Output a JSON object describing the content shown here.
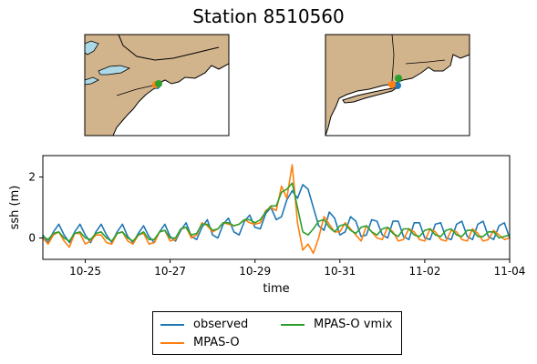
{
  "title": "Station 8510560",
  "chart_data": {
    "type": "line",
    "title": "Station 8510560",
    "xlabel": "time",
    "ylabel": "ssh (m)",
    "xlim": [
      "2022-10-24",
      "2022-11-04"
    ],
    "ylim": [
      -0.7,
      2.7
    ],
    "x_ticks": [
      "10-25",
      "10-27",
      "10-29",
      "10-31",
      "11-02",
      "11-04"
    ],
    "y_ticks": [
      "0",
      "2"
    ],
    "grid": false,
    "legend_position": "below",
    "series": [
      {
        "name": "observed",
        "color": "#1f77b4",
        "x": [
          "2022-10-24 00:00",
          "2022-10-24 03:00",
          "2022-10-24 06:00",
          "2022-10-24 09:00",
          "2022-10-24 12:00",
          "2022-10-24 15:00",
          "2022-10-24 18:00",
          "2022-10-24 21:00",
          "2022-10-25 00:00",
          "2022-10-25 03:00",
          "2022-10-25 06:00",
          "2022-10-25 09:00",
          "2022-10-25 12:00",
          "2022-10-25 15:00",
          "2022-10-25 18:00",
          "2022-10-25 21:00",
          "2022-10-26 00:00",
          "2022-10-26 03:00",
          "2022-10-26 06:00",
          "2022-10-26 09:00",
          "2022-10-26 12:00",
          "2022-10-26 15:00",
          "2022-10-26 18:00",
          "2022-10-26 21:00",
          "2022-10-27 00:00",
          "2022-10-27 03:00",
          "2022-10-27 06:00",
          "2022-10-27 09:00",
          "2022-10-27 12:00",
          "2022-10-27 15:00",
          "2022-10-27 18:00",
          "2022-10-27 21:00",
          "2022-10-28 00:00",
          "2022-10-28 03:00",
          "2022-10-28 06:00",
          "2022-10-28 09:00",
          "2022-10-28 12:00",
          "2022-10-28 15:00",
          "2022-10-28 18:00",
          "2022-10-28 21:00",
          "2022-10-29 00:00",
          "2022-10-29 03:00",
          "2022-10-29 06:00",
          "2022-10-29 09:00",
          "2022-10-29 12:00",
          "2022-10-29 15:00",
          "2022-10-29 18:00",
          "2022-10-29 21:00",
          "2022-10-30 00:00",
          "2022-10-30 03:00",
          "2022-10-30 06:00",
          "2022-10-30 09:00",
          "2022-10-30 12:00",
          "2022-10-30 15:00",
          "2022-10-30 18:00",
          "2022-10-30 21:00",
          "2022-10-31 00:00",
          "2022-10-31 03:00",
          "2022-10-31 06:00",
          "2022-10-31 09:00",
          "2022-10-31 12:00",
          "2022-10-31 15:00",
          "2022-10-31 18:00",
          "2022-10-31 21:00",
          "2022-11-01 00:00",
          "2022-11-01 03:00",
          "2022-11-01 06:00",
          "2022-11-01 09:00",
          "2022-11-01 12:00",
          "2022-11-01 15:00",
          "2022-11-01 18:00",
          "2022-11-01 21:00",
          "2022-11-02 00:00",
          "2022-11-02 03:00",
          "2022-11-02 06:00",
          "2022-11-02 09:00",
          "2022-11-02 12:00",
          "2022-11-02 15:00",
          "2022-11-02 18:00",
          "2022-11-02 21:00",
          "2022-11-03 00:00",
          "2022-11-03 03:00",
          "2022-11-03 06:00",
          "2022-11-03 09:00",
          "2022-11-03 12:00",
          "2022-11-03 15:00",
          "2022-11-03 18:00",
          "2022-11-03 21:00",
          "2022-11-04 00:00"
        ],
        "values": [
          0.1,
          -0.15,
          0.2,
          0.45,
          0.1,
          -0.15,
          0.2,
          0.45,
          0.1,
          -0.15,
          0.2,
          0.45,
          0.1,
          -0.15,
          0.2,
          0.45,
          0.05,
          -0.15,
          0.15,
          0.4,
          0.05,
          -0.15,
          0.2,
          0.45,
          0.05,
          -0.1,
          0.25,
          0.5,
          0.05,
          -0.05,
          0.35,
          0.6,
          0.1,
          0.0,
          0.45,
          0.65,
          0.2,
          0.1,
          0.55,
          0.75,
          0.35,
          0.3,
          0.8,
          1.0,
          0.6,
          0.7,
          1.25,
          1.55,
          1.3,
          1.75,
          1.6,
          1.0,
          0.4,
          0.25,
          0.85,
          0.65,
          0.1,
          0.2,
          0.7,
          0.55,
          0.05,
          0.1,
          0.6,
          0.55,
          0.1,
          0.0,
          0.55,
          0.55,
          0.05,
          -0.05,
          0.5,
          0.5,
          0.0,
          -0.05,
          0.45,
          0.5,
          0.0,
          -0.05,
          0.45,
          0.55,
          0.05,
          -0.05,
          0.45,
          0.55,
          0.05,
          -0.05,
          0.4,
          0.5,
          0.0
        ]
      },
      {
        "name": "MPAS-O",
        "color": "#ff7f0e",
        "x": [
          "2022-10-24 00:00",
          "2022-10-24 03:00",
          "2022-10-24 06:00",
          "2022-10-24 09:00",
          "2022-10-24 12:00",
          "2022-10-24 15:00",
          "2022-10-24 18:00",
          "2022-10-24 21:00",
          "2022-10-25 00:00",
          "2022-10-25 03:00",
          "2022-10-25 06:00",
          "2022-10-25 09:00",
          "2022-10-25 12:00",
          "2022-10-25 15:00",
          "2022-10-25 18:00",
          "2022-10-25 21:00",
          "2022-10-26 00:00",
          "2022-10-26 03:00",
          "2022-10-26 06:00",
          "2022-10-26 09:00",
          "2022-10-26 12:00",
          "2022-10-26 15:00",
          "2022-10-26 18:00",
          "2022-10-26 21:00",
          "2022-10-27 00:00",
          "2022-10-27 03:00",
          "2022-10-27 06:00",
          "2022-10-27 09:00",
          "2022-10-27 12:00",
          "2022-10-27 15:00",
          "2022-10-27 18:00",
          "2022-10-27 21:00",
          "2022-10-28 00:00",
          "2022-10-28 03:00",
          "2022-10-28 06:00",
          "2022-10-28 09:00",
          "2022-10-28 12:00",
          "2022-10-28 15:00",
          "2022-10-28 18:00",
          "2022-10-28 21:00",
          "2022-10-29 00:00",
          "2022-10-29 03:00",
          "2022-10-29 06:00",
          "2022-10-29 09:00",
          "2022-10-29 12:00",
          "2022-10-29 15:00",
          "2022-10-29 18:00",
          "2022-10-29 21:00",
          "2022-10-30 00:00",
          "2022-10-30 03:00",
          "2022-10-30 06:00",
          "2022-10-30 09:00",
          "2022-10-30 12:00",
          "2022-10-30 15:00",
          "2022-10-30 18:00",
          "2022-10-30 21:00",
          "2022-10-31 00:00",
          "2022-10-31 03:00",
          "2022-10-31 06:00",
          "2022-10-31 09:00",
          "2022-10-31 12:00",
          "2022-10-31 15:00",
          "2022-10-31 18:00",
          "2022-10-31 21:00",
          "2022-11-01 00:00",
          "2022-11-01 03:00",
          "2022-11-01 06:00",
          "2022-11-01 09:00",
          "2022-11-01 12:00",
          "2022-11-01 15:00",
          "2022-11-01 18:00",
          "2022-11-01 21:00",
          "2022-11-02 00:00",
          "2022-11-02 03:00",
          "2022-11-02 06:00",
          "2022-11-02 09:00",
          "2022-11-02 12:00",
          "2022-11-02 15:00",
          "2022-11-02 18:00",
          "2022-11-02 21:00",
          "2022-11-03 00:00",
          "2022-11-03 03:00",
          "2022-11-03 06:00",
          "2022-11-03 09:00",
          "2022-11-03 12:00",
          "2022-11-03 15:00",
          "2022-11-03 18:00",
          "2022-11-03 21:00",
          "2022-11-04 00:00"
        ],
        "values": [
          0.0,
          -0.2,
          0.1,
          0.2,
          -0.1,
          -0.3,
          0.15,
          0.15,
          -0.2,
          -0.1,
          0.1,
          0.1,
          -0.15,
          -0.2,
          0.15,
          0.2,
          -0.1,
          -0.2,
          0.1,
          0.15,
          -0.2,
          -0.15,
          0.2,
          0.25,
          -0.1,
          -0.05,
          0.3,
          0.35,
          0.0,
          0.1,
          0.5,
          0.4,
          0.2,
          0.3,
          0.5,
          0.45,
          0.4,
          0.45,
          0.6,
          0.5,
          0.45,
          0.5,
          0.9,
          1.0,
          0.9,
          1.7,
          1.3,
          2.4,
          0.5,
          -0.4,
          -0.2,
          -0.5,
          0.0,
          0.7,
          0.45,
          0.2,
          0.2,
          0.5,
          0.3,
          0.1,
          -0.1,
          0.4,
          0.2,
          0.0,
          -0.05,
          0.35,
          0.2,
          -0.1,
          -0.05,
          0.3,
          0.2,
          -0.05,
          -0.1,
          0.3,
          0.2,
          -0.05,
          -0.1,
          0.25,
          0.2,
          -0.05,
          -0.1,
          0.3,
          0.15,
          -0.1,
          -0.05,
          0.25,
          0.1,
          -0.05,
          0.0
        ]
      },
      {
        "name": "MPAS-O vmix",
        "color": "#2ca02c",
        "x": [
          "2022-10-24 00:00",
          "2022-10-24 03:00",
          "2022-10-24 06:00",
          "2022-10-24 09:00",
          "2022-10-24 12:00",
          "2022-10-24 15:00",
          "2022-10-24 18:00",
          "2022-10-24 21:00",
          "2022-10-25 00:00",
          "2022-10-25 03:00",
          "2022-10-25 06:00",
          "2022-10-25 09:00",
          "2022-10-25 12:00",
          "2022-10-25 15:00",
          "2022-10-25 18:00",
          "2022-10-25 21:00",
          "2022-10-26 00:00",
          "2022-10-26 03:00",
          "2022-10-26 06:00",
          "2022-10-26 09:00",
          "2022-10-26 12:00",
          "2022-10-26 15:00",
          "2022-10-26 18:00",
          "2022-10-26 21:00",
          "2022-10-27 00:00",
          "2022-10-27 03:00",
          "2022-10-27 06:00",
          "2022-10-27 09:00",
          "2022-10-27 12:00",
          "2022-10-27 15:00",
          "2022-10-27 18:00",
          "2022-10-27 21:00",
          "2022-10-28 00:00",
          "2022-10-28 03:00",
          "2022-10-28 06:00",
          "2022-10-28 09:00",
          "2022-10-28 12:00",
          "2022-10-28 15:00",
          "2022-10-28 18:00",
          "2022-10-28 21:00",
          "2022-10-29 00:00",
          "2022-10-29 03:00",
          "2022-10-29 06:00",
          "2022-10-29 09:00",
          "2022-10-29 12:00",
          "2022-10-29 15:00",
          "2022-10-29 18:00",
          "2022-10-29 21:00",
          "2022-10-30 00:00",
          "2022-10-30 03:00",
          "2022-10-30 06:00",
          "2022-10-30 09:00",
          "2022-10-30 12:00",
          "2022-10-30 15:00",
          "2022-10-30 18:00",
          "2022-10-30 21:00",
          "2022-10-31 00:00",
          "2022-10-31 03:00",
          "2022-10-31 06:00",
          "2022-10-31 09:00",
          "2022-10-31 12:00",
          "2022-10-31 15:00",
          "2022-10-31 18:00",
          "2022-10-31 21:00",
          "2022-11-01 00:00",
          "2022-11-01 03:00",
          "2022-11-01 06:00",
          "2022-11-01 09:00",
          "2022-11-01 12:00",
          "2022-11-01 15:00",
          "2022-11-01 18:00",
          "2022-11-01 21:00",
          "2022-11-02 00:00",
          "2022-11-02 03:00",
          "2022-11-02 06:00",
          "2022-11-02 09:00",
          "2022-11-02 12:00",
          "2022-11-02 15:00",
          "2022-11-02 18:00",
          "2022-11-02 21:00",
          "2022-11-03 00:00",
          "2022-11-03 03:00",
          "2022-11-03 06:00",
          "2022-11-03 09:00",
          "2022-11-03 12:00",
          "2022-11-03 15:00",
          "2022-11-03 18:00",
          "2022-11-03 21:00",
          "2022-11-04 00:00"
        ],
        "values": [
          0.05,
          -0.05,
          0.15,
          0.2,
          0.0,
          -0.1,
          0.15,
          0.2,
          0.0,
          -0.05,
          0.15,
          0.2,
          0.0,
          -0.1,
          0.15,
          0.2,
          0.0,
          -0.1,
          0.1,
          0.2,
          -0.05,
          -0.05,
          0.2,
          0.25,
          0.0,
          0.0,
          0.3,
          0.35,
          0.1,
          0.15,
          0.45,
          0.45,
          0.25,
          0.3,
          0.5,
          0.5,
          0.4,
          0.45,
          0.6,
          0.6,
          0.5,
          0.6,
          0.85,
          1.05,
          1.05,
          1.5,
          1.6,
          1.8,
          1.0,
          0.2,
          0.1,
          0.3,
          0.55,
          0.6,
          0.35,
          0.2,
          0.4,
          0.45,
          0.25,
          0.15,
          0.35,
          0.4,
          0.2,
          0.1,
          0.3,
          0.35,
          0.15,
          0.05,
          0.3,
          0.3,
          0.1,
          0.05,
          0.25,
          0.3,
          0.1,
          0.05,
          0.25,
          0.3,
          0.1,
          0.05,
          0.25,
          0.25,
          0.05,
          0.05,
          0.2,
          0.2,
          0.0,
          0.05,
          0.1
        ]
      }
    ],
    "inset_maps": [
      {
        "land_color": "#d2b48c",
        "water_color": "#ffffff",
        "lake_color": "#add8e6",
        "marker_colors": [
          "#1f77b4",
          "#ff7f0e",
          "#2ca02c"
        ]
      },
      {
        "land_color": "#d2b48c",
        "water_color": "#ffffff",
        "marker_colors": [
          "#1f77b4",
          "#ff7f0e",
          "#2ca02c"
        ]
      }
    ]
  }
}
